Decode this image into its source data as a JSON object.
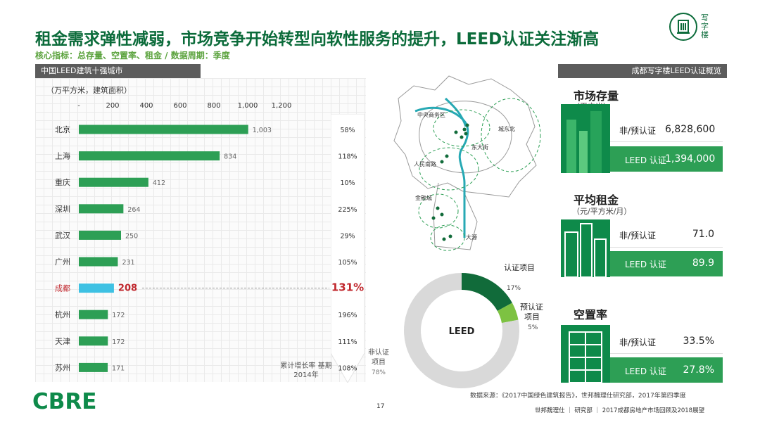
{
  "header": {
    "title": "租金需求弹性减弱，市场竞争开始转型向软性服务的提升，LEED认证关注渐高",
    "subtitle": "核心指标：总存量、空置率、租金 / 数据周期：季度",
    "logo_label": "写字楼"
  },
  "left_panel": {
    "heading": "中国LEED建筑十强城市",
    "unit": "（万平方米，建筑面积）",
    "growth_note": "累计增长率 基期2014年"
  },
  "chart_data": {
    "type": "bar",
    "orientation": "horizontal",
    "categories": [
      "北京",
      "上海",
      "重庆",
      "深圳",
      "武汉",
      "广州",
      "成都",
      "杭州",
      "天津",
      "苏州"
    ],
    "values": [
      1003,
      834,
      412,
      264,
      250,
      231,
      208,
      172,
      172,
      171
    ],
    "value_labels": [
      "1,003",
      "834",
      "412",
      "264",
      "250",
      "231",
      "208",
      "172",
      "172",
      "171"
    ],
    "growth_labels": [
      "58%",
      "118%",
      "10%",
      "225%",
      "29%",
      "105%",
      "131%",
      "196%",
      "111%",
      "108%"
    ],
    "highlight_index": 6,
    "xlim": [
      0,
      1200
    ],
    "xticks": [
      0,
      200,
      400,
      600,
      800,
      1000,
      1200
    ],
    "xtick_labels": [
      "-",
      "200",
      "400",
      "600",
      "800",
      "1,000",
      "1,200"
    ],
    "colors": {
      "bar": "#2d9f55",
      "highlight": "#3ec1e3",
      "highlight_text": "#c0272d"
    }
  },
  "map": {
    "labels": [
      "中央商务区",
      "城东北",
      "东大街",
      "人民南路",
      "金融城",
      "大源"
    ],
    "colors": {
      "river": "#27a9b4",
      "zone": "#2d9f55",
      "road": "#9a9a9a"
    }
  },
  "donut": {
    "center_label": "LEED",
    "segments": [
      {
        "label": "认证项目",
        "percent": 17,
        "color": "#116b3a"
      },
      {
        "label": "预认证项目",
        "percent": 5,
        "color": "#7dc242"
      },
      {
        "label": "非认证项目",
        "percent": 78,
        "color": "#d9d9d9"
      }
    ]
  },
  "right_panel": {
    "heading": "成都写字楼LEED认证概览",
    "stats": [
      {
        "title": "市场存量",
        "unit": "（平方米）",
        "row1_label": "非/预认证",
        "row1_value": "6,828,600",
        "row2_label": "LEED 认证",
        "row2_value": "1,394,000"
      },
      {
        "title": "平均租金",
        "unit": "（元/平方米/月）",
        "row1_label": "非/预认证",
        "row1_value": "71.0",
        "row2_label": "LEED 认证",
        "row2_value": "89.9"
      },
      {
        "title": "空置率",
        "unit": "",
        "row1_label": "非/预认证",
        "row1_value": "33.5%",
        "row2_label": "LEED 认证",
        "row2_value": "27.8%"
      }
    ]
  },
  "footer": {
    "source": "数据来源：《2017中国绿色建筑报告》，世邦魏理仕研究部，2017年第四季度",
    "page_number": "17",
    "report": "世邦魏理仕 ｜ 研究部 ｜ 2017成都房地产市场回顾及2018展望",
    "brand": "CBRE"
  }
}
